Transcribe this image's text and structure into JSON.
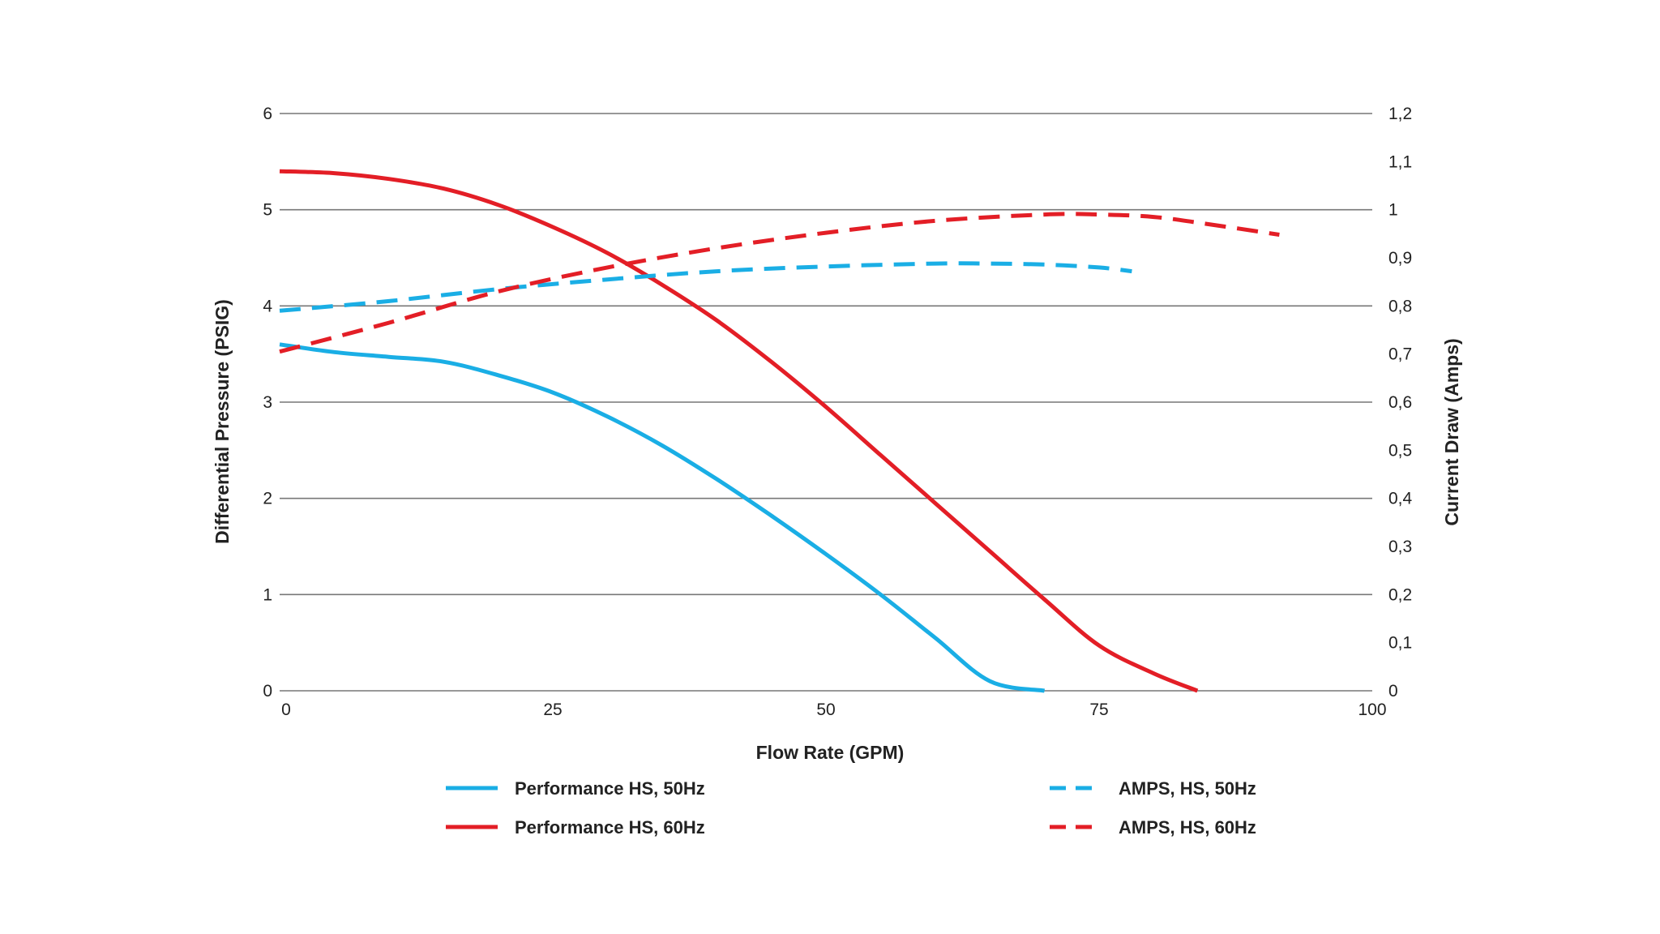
{
  "chart_data": {
    "type": "line",
    "xlabel": "Flow Rate (GPM)",
    "ylabel": "Differential Pressure (PSIG)",
    "y2label": "Current Draw (Amps)",
    "xlim": [
      0,
      100
    ],
    "ylim": [
      0,
      6
    ],
    "y2lim": [
      0,
      1.2
    ],
    "x_ticks": [
      "0",
      "25",
      "50",
      "75",
      "100"
    ],
    "y_ticks": [
      "0",
      "1",
      "2",
      "3",
      "4",
      "5",
      "6"
    ],
    "y2_ticks": [
      "0",
      "0,1",
      "0,2",
      "0,3",
      "0,4",
      "0,5",
      "0,6",
      "0,7",
      "0,8",
      "0,9",
      "1",
      "1,1",
      "1,2"
    ],
    "grid": true,
    "legend_position": "bottom",
    "series": [
      {
        "name": "Performance HS, 50Hz",
        "axis": "left",
        "style": "solid",
        "color": "#1aaee5",
        "x": [
          0,
          5,
          10,
          15,
          20,
          25,
          30,
          35,
          40,
          45,
          50,
          55,
          60,
          65,
          70
        ],
        "y": [
          3.6,
          3.52,
          3.47,
          3.42,
          3.28,
          3.1,
          2.85,
          2.55,
          2.2,
          1.82,
          1.42,
          1.0,
          0.55,
          0.1,
          0.0
        ]
      },
      {
        "name": "Performance HS, 60Hz",
        "axis": "left",
        "style": "solid",
        "color": "#e31e26",
        "x": [
          0,
          5,
          10,
          15,
          20,
          25,
          30,
          35,
          40,
          45,
          50,
          55,
          60,
          65,
          70,
          75,
          80,
          84
        ],
        "y": [
          5.4,
          5.38,
          5.32,
          5.22,
          5.05,
          4.82,
          4.55,
          4.22,
          3.85,
          3.42,
          2.95,
          2.45,
          1.95,
          1.45,
          0.95,
          0.47,
          0.18,
          0.0
        ]
      },
      {
        "name": "AMPS, HS, 50Hz",
        "axis": "right",
        "style": "dashed",
        "color": "#1aaee5",
        "x": [
          0,
          10,
          20,
          30,
          40,
          50,
          60,
          65,
          70,
          75,
          78
        ],
        "y": [
          0.79,
          0.81,
          0.835,
          0.855,
          0.872,
          0.882,
          0.888,
          0.888,
          0.886,
          0.88,
          0.872
        ]
      },
      {
        "name": "AMPS, HS, 60Hz",
        "axis": "right",
        "style": "dashed",
        "color": "#e31e26",
        "x": [
          0,
          10,
          20,
          30,
          40,
          50,
          60,
          70,
          75,
          80,
          85,
          91.5
        ],
        "y": [
          0.705,
          0.765,
          0.83,
          0.88,
          0.92,
          0.952,
          0.977,
          0.99,
          0.99,
          0.985,
          0.97,
          0.948
        ]
      }
    ]
  }
}
